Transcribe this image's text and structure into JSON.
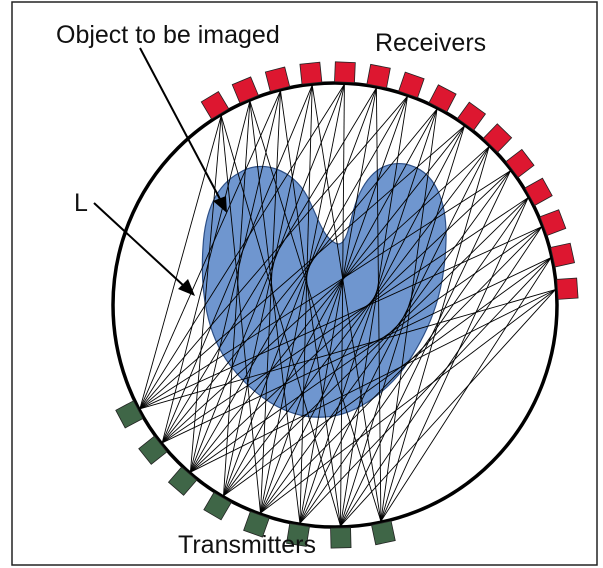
{
  "labels": {
    "object": "Object to be imaged",
    "receivers": "Receivers",
    "path": "L",
    "transmitters": "Transmitters"
  },
  "colors": {
    "frame": "#222222",
    "circle": "#000000",
    "object_fill": "#6f96cf",
    "object_stroke": "#2d4f86",
    "receiver": "#dd1730",
    "transmitter": "#3f6647",
    "ray": "#000000"
  },
  "counts": {
    "receivers": 15,
    "transmitters": 8
  }
}
